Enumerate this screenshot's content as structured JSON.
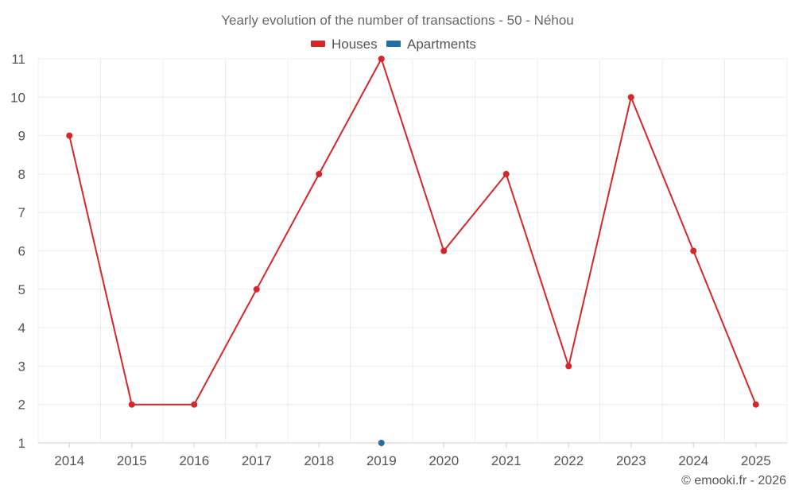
{
  "chart_data": {
    "type": "line",
    "title": "Yearly evolution of the number of transactions - 50 - Néhou",
    "categories": [
      "2014",
      "2015",
      "2016",
      "2017",
      "2018",
      "2019",
      "2020",
      "2021",
      "2022",
      "2023",
      "2024",
      "2025"
    ],
    "series": [
      {
        "name": "Houses",
        "color": "#d62728",
        "values": [
          9,
          2,
          2,
          5,
          8,
          11,
          6,
          8,
          3,
          10,
          6,
          2
        ]
      },
      {
        "name": "Apartments",
        "color": "#1f6fa8",
        "values": [
          null,
          null,
          null,
          null,
          null,
          1,
          null,
          null,
          null,
          null,
          null,
          null
        ]
      }
    ],
    "y_ticks": [
      1,
      2,
      3,
      4,
      5,
      6,
      7,
      8,
      9,
      10,
      11
    ],
    "ylim": [
      1,
      11
    ],
    "legend_position": "top-center",
    "grid": true,
    "credit": "© emooki.fr - 2026"
  }
}
